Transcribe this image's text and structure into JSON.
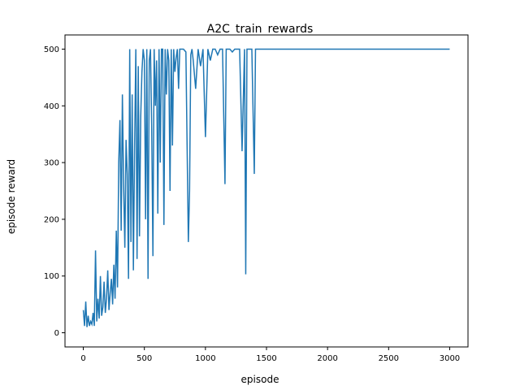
{
  "chart_data": {
    "type": "line",
    "title": "A2C_train_rewards",
    "xlabel": "episode",
    "ylabel": "episode reward",
    "xlim": [
      -150,
      3150
    ],
    "ylim": [
      -25,
      525
    ],
    "xticks": [
      0,
      500,
      1000,
      1500,
      2000,
      2500,
      3000
    ],
    "yticks": [
      0,
      100,
      200,
      300,
      400,
      500
    ],
    "grid": false,
    "legend": "none",
    "series": [
      {
        "color": "#1f77b4",
        "x": [
          0,
          10,
          20,
          30,
          40,
          50,
          60,
          70,
          80,
          90,
          100,
          110,
          120,
          130,
          140,
          150,
          160,
          170,
          180,
          190,
          200,
          210,
          220,
          230,
          240,
          250,
          260,
          270,
          280,
          290,
          300,
          310,
          320,
          330,
          340,
          350,
          360,
          370,
          380,
          390,
          400,
          410,
          420,
          430,
          440,
          450,
          460,
          470,
          480,
          490,
          500,
          510,
          520,
          530,
          540,
          550,
          560,
          570,
          580,
          590,
          600,
          610,
          620,
          630,
          640,
          650,
          660,
          670,
          680,
          690,
          700,
          710,
          720,
          730,
          740,
          750,
          760,
          770,
          780,
          790,
          800,
          820,
          840,
          860,
          870,
          880,
          890,
          900,
          920,
          940,
          960,
          980,
          1000,
          1020,
          1040,
          1060,
          1080,
          1100,
          1120,
          1140,
          1160,
          1170,
          1180,
          1200,
          1220,
          1240,
          1260,
          1280,
          1300,
          1320,
          1330,
          1340,
          1360,
          1380,
          1400,
          1410,
          1420,
          1440,
          1500,
          2000,
          2500,
          3000
        ],
        "y": [
          40,
          12,
          55,
          10,
          30,
          12,
          20,
          15,
          35,
          12,
          145,
          20,
          60,
          25,
          100,
          30,
          45,
          90,
          35,
          60,
          110,
          40,
          70,
          95,
          50,
          120,
          60,
          180,
          80,
          300,
          375,
          180,
          420,
          260,
          150,
          340,
          280,
          95,
          500,
          160,
          420,
          110,
          330,
          500,
          130,
          470,
          170,
          380,
          460,
          500,
          480,
          200,
          500,
          95,
          480,
          500,
          360,
          135,
          500,
          400,
          480,
          210,
          500,
          300,
          500,
          500,
          190,
          500,
          420,
          500,
          480,
          250,
          500,
          330,
          500,
          460,
          485,
          500,
          430,
          500,
          500,
          500,
          495,
          160,
          250,
          490,
          500,
          480,
          430,
          500,
          470,
          500,
          345,
          500,
          480,
          500,
          500,
          490,
          500,
          500,
          262,
          500,
          500,
          500,
          495,
          500,
          500,
          500,
          320,
          500,
          103,
          500,
          500,
          500,
          280,
          500,
          500,
          500,
          500,
          500,
          500,
          500
        ]
      }
    ]
  }
}
